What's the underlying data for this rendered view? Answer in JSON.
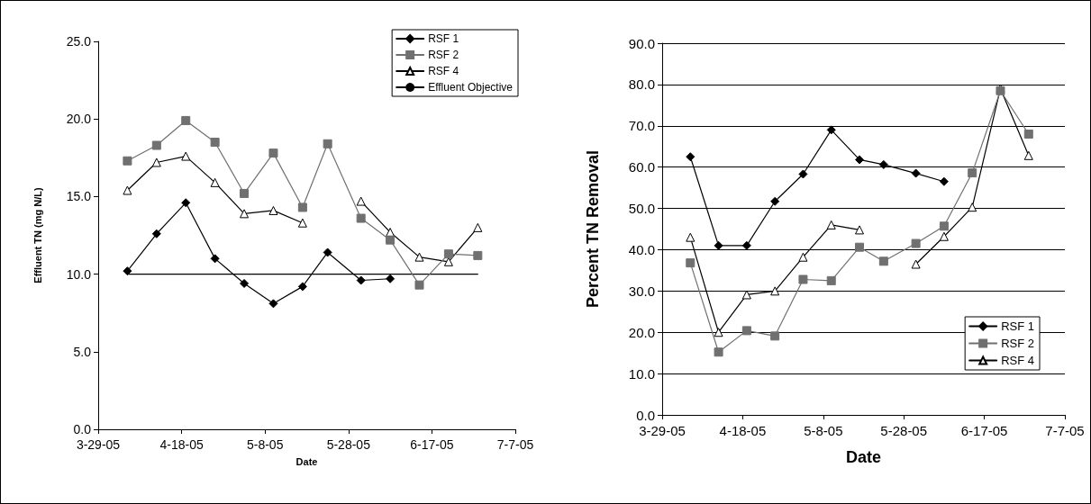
{
  "chart_data": [
    {
      "type": "line",
      "xlabel": "Date",
      "ylabel": "Effluent TN (mg N/L)",
      "x": [
        "2005-04-05",
        "2005-04-12",
        "2005-04-19",
        "2005-04-26",
        "2005-05-03",
        "2005-05-10",
        "2005-05-17",
        "2005-05-23",
        "2005-05-31",
        "2005-06-07",
        "2005-06-14",
        "2005-06-21",
        "2005-06-28"
      ],
      "series": [
        {
          "name": "RSF 1",
          "color": "#000000",
          "marker": "diamond",
          "values": [
            10.2,
            12.6,
            14.6,
            11.0,
            9.4,
            8.1,
            9.2,
            11.4,
            9.6,
            9.7,
            null,
            null,
            null
          ]
        },
        {
          "name": "RSF 2",
          "color": "#707070",
          "marker": "square",
          "values": [
            17.3,
            18.3,
            19.9,
            18.5,
            15.2,
            17.8,
            14.3,
            18.4,
            13.6,
            12.2,
            9.3,
            11.3,
            11.2
          ]
        },
        {
          "name": "RSF 4",
          "color": "#000000",
          "marker": "triangle",
          "values": [
            15.4,
            17.2,
            17.6,
            15.9,
            13.9,
            14.1,
            13.3,
            null,
            14.7,
            12.7,
            11.1,
            10.8,
            13.0
          ]
        },
        {
          "name": "Effluent Objective",
          "color": "#000000",
          "marker": "none",
          "x": [
            "2005-04-05",
            "2005-06-28"
          ],
          "values": [
            10,
            10
          ]
        }
      ],
      "xlim": [
        "2005-03-29",
        "2005-07-07"
      ],
      "xticks": [
        {
          "value": "2005-03-29",
          "label": "3-29-05"
        },
        {
          "value": "2005-04-18",
          "label": "4-18-05"
        },
        {
          "value": "2005-05-08",
          "label": "5-8-05"
        },
        {
          "value": "2005-05-28",
          "label": "5-28-05"
        },
        {
          "value": "2005-06-17",
          "label": "6-17-05"
        },
        {
          "value": "2005-07-07",
          "label": "7-7-05"
        }
      ],
      "ylim": [
        0,
        25
      ],
      "yticks": [
        {
          "value": 0,
          "label": "0.0"
        },
        {
          "value": 5,
          "label": "5.0"
        },
        {
          "value": 10,
          "label": "10.0"
        },
        {
          "value": 15,
          "label": "15.0"
        },
        {
          "value": 20,
          "label": "20.0"
        },
        {
          "value": 25,
          "label": "25.0"
        }
      ],
      "grid": false,
      "legend": "top right"
    },
    {
      "type": "line",
      "xlabel": "Date",
      "ylabel": "Percent TN Removal",
      "x": [
        "2005-04-05",
        "2005-04-12",
        "2005-04-19",
        "2005-04-26",
        "2005-05-03",
        "2005-05-10",
        "2005-05-17",
        "2005-05-23",
        "2005-05-31",
        "2005-06-07",
        "2005-06-14",
        "2005-06-21",
        "2005-06-28"
      ],
      "series": [
        {
          "name": "RSF 1",
          "color": "#000000",
          "marker": "diamond",
          "values": [
            62.5,
            41,
            41,
            51.7,
            58.3,
            69,
            61.8,
            60.6,
            58.5,
            56.5,
            null,
            null,
            null
          ]
        },
        {
          "name": "RSF 2",
          "color": "#707070",
          "marker": "square",
          "values": [
            36.8,
            15.2,
            20.4,
            19.1,
            32.8,
            32.5,
            40.6,
            37.2,
            41.5,
            45.7,
            58.6,
            78.5,
            68.0
          ]
        },
        {
          "name": "RSF 4",
          "color": "#000000",
          "marker": "triangle",
          "values": [
            43,
            20,
            29.1,
            30,
            38.2,
            46,
            44.8,
            null,
            36.5,
            43.2,
            50.3,
            79,
            62.8
          ]
        }
      ],
      "xlim": [
        "2005-03-29",
        "2005-07-07"
      ],
      "xticks": [
        {
          "value": "2005-03-29",
          "label": "3-29-05"
        },
        {
          "value": "2005-04-18",
          "label": "4-18-05"
        },
        {
          "value": "2005-05-08",
          "label": "5-8-05"
        },
        {
          "value": "2005-05-28",
          "label": "5-28-05"
        },
        {
          "value": "2005-06-17",
          "label": "6-17-05"
        },
        {
          "value": "2005-07-07",
          "label": "7-7-05"
        }
      ],
      "ylim": [
        0,
        90
      ],
      "yticks": [
        {
          "value": 0,
          "label": "0.0"
        },
        {
          "value": 10,
          "label": "10.0"
        },
        {
          "value": 20,
          "label": "20.0"
        },
        {
          "value": 30,
          "label": "30.0"
        },
        {
          "value": 40,
          "label": "40.0"
        },
        {
          "value": 50,
          "label": "50.0"
        },
        {
          "value": 60,
          "label": "60.0"
        },
        {
          "value": 70,
          "label": "70.0"
        },
        {
          "value": 80,
          "label": "80.0"
        },
        {
          "value": 90,
          "label": "90.0"
        }
      ],
      "grid": "y",
      "legend": "bottom right"
    }
  ]
}
